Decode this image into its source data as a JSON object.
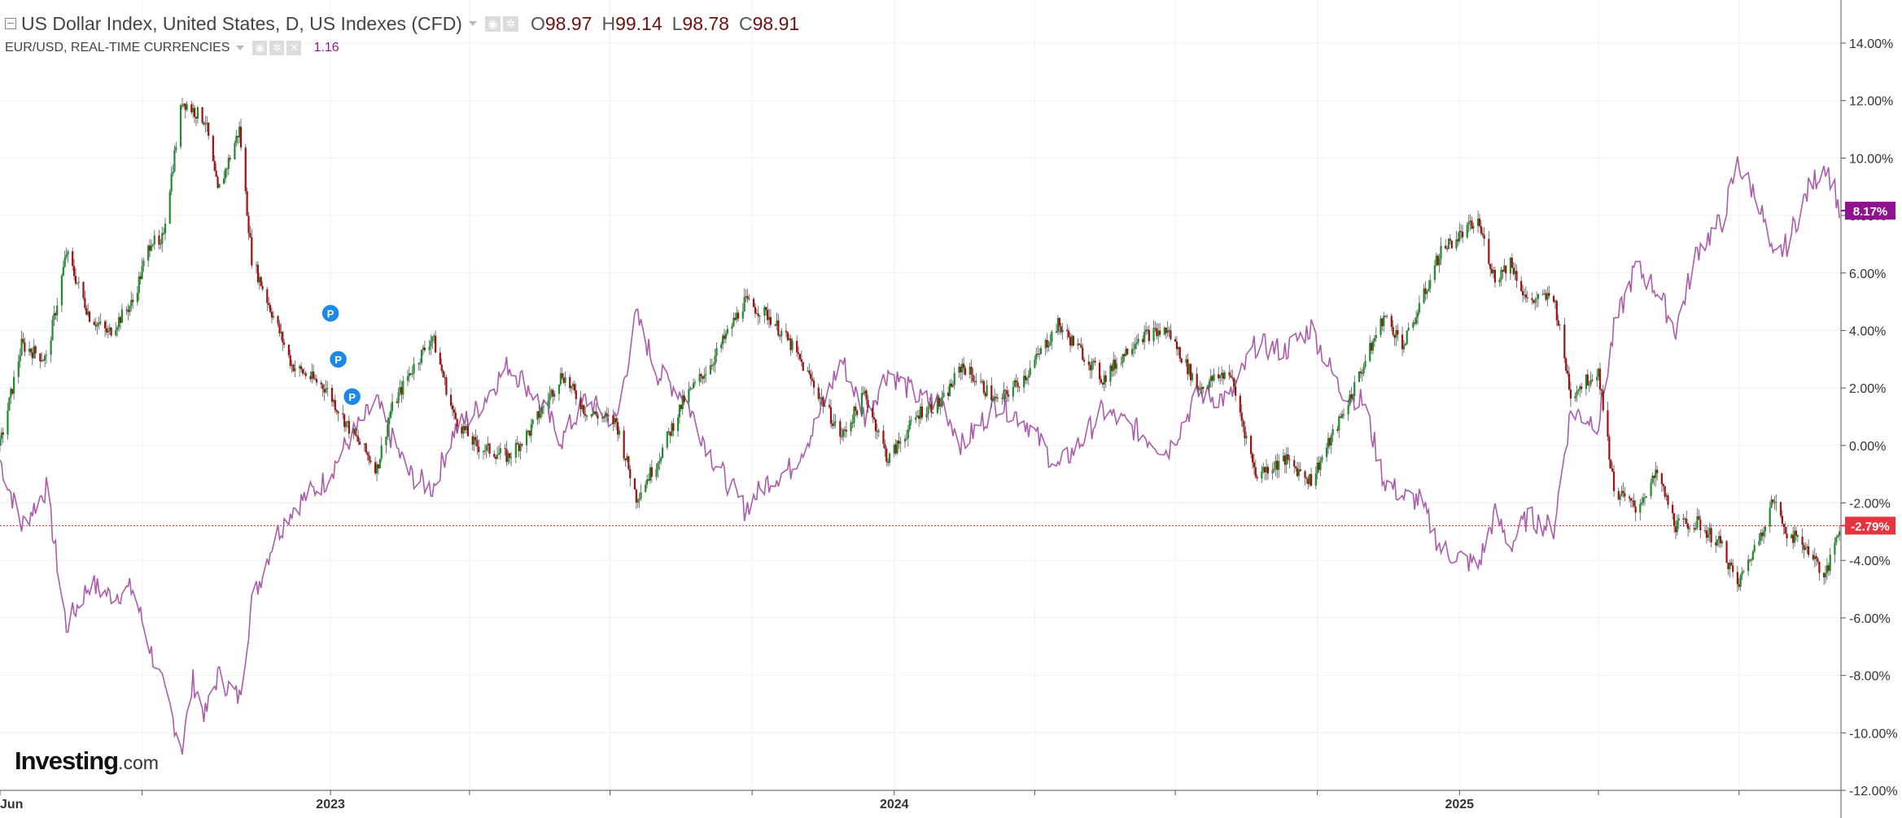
{
  "header": {
    "symbol_title": "US Dollar Index, United States, D, US Indexes (CFD)",
    "ohlc": [
      {
        "key": "O",
        "value": "98.97"
      },
      {
        "key": "H",
        "value": "99.14"
      },
      {
        "key": "L",
        "value": "98.78"
      },
      {
        "key": "C",
        "value": "98.91"
      }
    ],
    "compare_title": "EUR/USD, REAL-TIME CURRENCIES",
    "compare_value": "1.16"
  },
  "logo": {
    "brand": "Investing",
    "suffix": ".com"
  },
  "colors": {
    "up": "#1c8f2c",
    "down": "#a20f0f",
    "wick": "#555555",
    "compare_line": "#ab5cab",
    "last_price": "#e6343f",
    "compare_tag": "#8e138e",
    "grid": "#f0f0f0",
    "axis": "#555555",
    "marker": "#1e88e5"
  },
  "icons": {
    "settings": "gear-icon",
    "visibility": "eye-icon",
    "close": "close-icon",
    "collapse": "minus-box-icon",
    "dropdown": "chevron-down-icon"
  },
  "markers": [
    {
      "label": "P",
      "date": "2023-01-01",
      "value": 4.6
    },
    {
      "label": "P",
      "date": "2023-01-06",
      "value": 3.0
    },
    {
      "label": "P",
      "date": "2023-01-15",
      "value": 1.7
    }
  ],
  "chart_data": {
    "type": "line",
    "title": "US Dollar Index, United States, D, US Indexes (CFD)",
    "x_axis": {
      "type": "date",
      "range": [
        "2022-06-01",
        "2025-09-05"
      ],
      "tick_labels": [
        {
          "label": "Jun",
          "date": "2022-06-01"
        },
        {
          "label": "2023",
          "date": "2023-01-01"
        },
        {
          "label": "2024",
          "date": "2024-01-01"
        },
        {
          "label": "2025",
          "date": "2025-01-01"
        }
      ],
      "unlabeled_ticks": [
        "2022-09-01",
        "2023-04-01",
        "2023-07-01",
        "2023-10-01",
        "2024-04-01",
        "2024-07-01",
        "2024-10-01",
        "2025-04-01",
        "2025-07-01"
      ]
    },
    "y_axis": {
      "unit": "%",
      "ylim": [
        -12,
        15.5
      ],
      "ticks": [
        "14.00%",
        "12.00%",
        "10.00%",
        "8.00%",
        "6.00%",
        "4.00%",
        "2.00%",
        "0.00%",
        "-2.00%",
        "-4.00%",
        "-6.00%",
        "-8.00%",
        "-10.00%",
        "-12.00%"
      ],
      "tick_values": [
        14,
        12,
        10,
        8,
        6,
        4,
        2,
        0,
        -2,
        -4,
        -6,
        -8,
        -10,
        -12
      ]
    },
    "grid": true,
    "series": [
      {
        "name": "US Dollar Index",
        "style": "candlestick",
        "value_label": "-2.79%",
        "last_value": -2.79,
        "points": [
          [
            "2022-06-01",
            0.0
          ],
          [
            "2022-06-15",
            3.5
          ],
          [
            "2022-07-01",
            3.0
          ],
          [
            "2022-07-14",
            6.7
          ],
          [
            "2022-07-29",
            4.5
          ],
          [
            "2022-08-10",
            3.9
          ],
          [
            "2022-08-26",
            5.0
          ],
          [
            "2022-09-07",
            7.2
          ],
          [
            "2022-09-13",
            6.8
          ],
          [
            "2022-09-27",
            12.0
          ],
          [
            "2022-10-12",
            11.3
          ],
          [
            "2022-10-20",
            8.8
          ],
          [
            "2022-11-03",
            11.0
          ],
          [
            "2022-11-11",
            6.5
          ],
          [
            "2022-11-25",
            4.5
          ],
          [
            "2022-12-07",
            2.8
          ],
          [
            "2022-12-29",
            2.0
          ],
          [
            "2023-01-13",
            0.6
          ],
          [
            "2023-01-31",
            -0.8
          ],
          [
            "2023-02-09",
            1.2
          ],
          [
            "2023-02-21",
            2.5
          ],
          [
            "2023-03-08",
            3.8
          ],
          [
            "2023-03-22",
            1.0
          ],
          [
            "2023-04-05",
            0.0
          ],
          [
            "2023-04-26",
            -0.4
          ],
          [
            "2023-05-10",
            0.5
          ],
          [
            "2023-05-31",
            2.5
          ],
          [
            "2023-06-15",
            1.2
          ],
          [
            "2023-07-05",
            0.8
          ],
          [
            "2023-07-18",
            -1.8
          ],
          [
            "2023-08-01",
            -0.5
          ],
          [
            "2023-08-17",
            1.5
          ],
          [
            "2023-09-06",
            3.0
          ],
          [
            "2023-09-26",
            5.0
          ],
          [
            "2023-10-12",
            4.5
          ],
          [
            "2023-10-26",
            3.5
          ],
          [
            "2023-11-09",
            2.2
          ],
          [
            "2023-11-28",
            0.3
          ],
          [
            "2023-12-13",
            1.8
          ],
          [
            "2023-12-28",
            -0.5
          ],
          [
            "2024-01-18",
            1.2
          ],
          [
            "2024-02-01",
            1.5
          ],
          [
            "2024-02-14",
            2.8
          ],
          [
            "2024-03-08",
            1.5
          ],
          [
            "2024-03-27",
            2.5
          ],
          [
            "2024-04-16",
            4.2
          ],
          [
            "2024-05-02",
            3.2
          ],
          [
            "2024-05-15",
            2.3
          ],
          [
            "2024-06-07",
            3.8
          ],
          [
            "2024-06-26",
            4.0
          ],
          [
            "2024-07-16",
            2.0
          ],
          [
            "2024-08-05",
            2.6
          ],
          [
            "2024-08-22",
            -1.0
          ],
          [
            "2024-09-10",
            -0.5
          ],
          [
            "2024-09-27",
            -1.2
          ],
          [
            "2024-10-15",
            0.8
          ],
          [
            "2024-10-31",
            2.8
          ],
          [
            "2024-11-13",
            4.5
          ],
          [
            "2024-11-26",
            3.5
          ],
          [
            "2024-12-06",
            4.8
          ],
          [
            "2024-12-20",
            6.8
          ],
          [
            "2025-01-13",
            7.8
          ],
          [
            "2025-01-24",
            5.8
          ],
          [
            "2025-02-03",
            6.4
          ],
          [
            "2025-02-14",
            5.0
          ],
          [
            "2025-03-03",
            5.2
          ],
          [
            "2025-03-14",
            1.8
          ],
          [
            "2025-04-01",
            2.6
          ],
          [
            "2025-04-11",
            -1.5
          ],
          [
            "2025-04-25",
            -2.2
          ],
          [
            "2025-05-09",
            -1.0
          ],
          [
            "2025-05-21",
            -2.8
          ],
          [
            "2025-06-04",
            -2.7
          ],
          [
            "2025-06-20",
            -3.5
          ],
          [
            "2025-06-30",
            -4.9
          ],
          [
            "2025-07-14",
            -3.2
          ],
          [
            "2025-07-23",
            -1.9
          ],
          [
            "2025-08-01",
            -3.0
          ],
          [
            "2025-08-15",
            -3.6
          ],
          [
            "2025-08-26",
            -4.6
          ],
          [
            "2025-09-01",
            -3.4
          ],
          [
            "2025-09-04",
            -2.79
          ]
        ]
      },
      {
        "name": "EUR/USD, REAL-TIME CURRENCIES",
        "style": "line",
        "value_label": "8.17%",
        "last_value": 8.17,
        "points": [
          [
            "2022-06-01",
            -0.5
          ],
          [
            "2022-06-15",
            -2.8
          ],
          [
            "2022-07-01",
            -1.5
          ],
          [
            "2022-07-14",
            -6.3
          ],
          [
            "2022-07-29",
            -4.8
          ],
          [
            "2022-08-10",
            -5.2
          ],
          [
            "2022-08-26",
            -5.0
          ],
          [
            "2022-09-07",
            -7.2
          ],
          [
            "2022-09-27",
            -10.5
          ],
          [
            "2022-10-04",
            -8.2
          ],
          [
            "2022-10-12",
            -9.4
          ],
          [
            "2022-10-20",
            -8.0
          ],
          [
            "2022-11-03",
            -8.8
          ],
          [
            "2022-11-11",
            -5.5
          ],
          [
            "2022-11-25",
            -3.3
          ],
          [
            "2022-12-07",
            -2.2
          ],
          [
            "2022-12-29",
            -1.2
          ],
          [
            "2023-01-13",
            0.2
          ],
          [
            "2023-01-31",
            1.5
          ],
          [
            "2023-02-09",
            0.3
          ],
          [
            "2023-02-21",
            -1.0
          ],
          [
            "2023-03-08",
            -1.5
          ],
          [
            "2023-03-22",
            0.5
          ],
          [
            "2023-04-05",
            1.2
          ],
          [
            "2023-04-26",
            2.8
          ],
          [
            "2023-05-10",
            2.0
          ],
          [
            "2023-05-31",
            0.2
          ],
          [
            "2023-06-15",
            1.6
          ],
          [
            "2023-07-05",
            0.8
          ],
          [
            "2023-07-18",
            4.5
          ],
          [
            "2023-08-01",
            2.5
          ],
          [
            "2023-08-17",
            1.8
          ],
          [
            "2023-09-06",
            -0.5
          ],
          [
            "2023-09-26",
            -2.2
          ],
          [
            "2023-10-12",
            -1.2
          ],
          [
            "2023-10-26",
            -0.8
          ],
          [
            "2023-11-09",
            0.5
          ],
          [
            "2023-11-28",
            3.0
          ],
          [
            "2023-12-13",
            1.0
          ],
          [
            "2023-12-28",
            2.6
          ],
          [
            "2024-01-18",
            1.6
          ],
          [
            "2024-02-01",
            1.5
          ],
          [
            "2024-02-14",
            0.0
          ],
          [
            "2024-03-08",
            1.5
          ],
          [
            "2024-03-27",
            0.8
          ],
          [
            "2024-04-16",
            -0.8
          ],
          [
            "2024-05-02",
            0.2
          ],
          [
            "2024-05-15",
            1.2
          ],
          [
            "2024-06-07",
            0.5
          ],
          [
            "2024-06-26",
            -0.2
          ],
          [
            "2024-07-16",
            1.8
          ],
          [
            "2024-08-05",
            1.6
          ],
          [
            "2024-08-22",
            3.5
          ],
          [
            "2024-09-10",
            3.3
          ],
          [
            "2024-09-27",
            4.1
          ],
          [
            "2024-10-15",
            2.0
          ],
          [
            "2024-10-31",
            1.5
          ],
          [
            "2024-11-13",
            -1.2
          ],
          [
            "2024-11-26",
            -1.8
          ],
          [
            "2024-12-06",
            -1.9
          ],
          [
            "2024-12-20",
            -3.6
          ],
          [
            "2025-01-13",
            -4.2
          ],
          [
            "2025-01-24",
            -2.4
          ],
          [
            "2025-02-03",
            -3.5
          ],
          [
            "2025-02-14",
            -2.5
          ],
          [
            "2025-03-03",
            -2.9
          ],
          [
            "2025-03-14",
            1.2
          ],
          [
            "2025-04-01",
            0.8
          ],
          [
            "2025-04-11",
            4.0
          ],
          [
            "2025-04-25",
            6.2
          ],
          [
            "2025-05-09",
            5.4
          ],
          [
            "2025-05-21",
            4.0
          ],
          [
            "2025-06-04",
            6.8
          ],
          [
            "2025-06-20",
            7.8
          ],
          [
            "2025-06-30",
            9.8
          ],
          [
            "2025-07-14",
            8.5
          ],
          [
            "2025-07-23",
            6.4
          ],
          [
            "2025-08-01",
            7.0
          ],
          [
            "2025-08-15",
            8.9
          ],
          [
            "2025-08-26",
            9.8
          ],
          [
            "2025-09-01",
            8.9
          ],
          [
            "2025-09-04",
            8.17
          ]
        ]
      }
    ]
  }
}
